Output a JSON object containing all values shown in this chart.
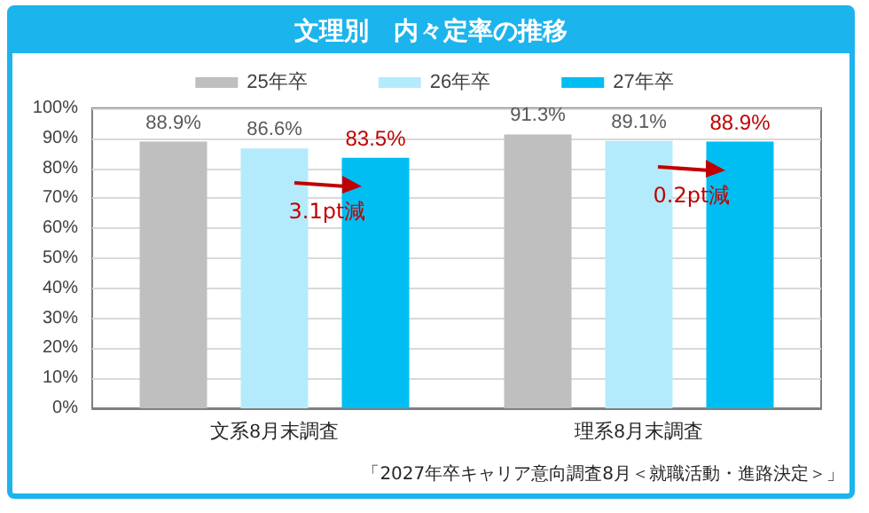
{
  "chart_data": {
    "type": "bar",
    "title": "文理別　内々定率の推移",
    "categories": [
      "文系8月末調査",
      "理系8月末調査"
    ],
    "series": [
      {
        "name": "25年卒",
        "color": "#bfbfbf",
        "values": [
          88.9,
          91.3
        ]
      },
      {
        "name": "26年卒",
        "color": "#b4ebfc",
        "values": [
          86.6,
          89.1
        ]
      },
      {
        "name": "27年卒",
        "color": "#00bef2",
        "values": [
          83.5,
          88.9
        ]
      }
    ],
    "ylim": [
      0,
      100
    ],
    "yticks": [
      {
        "value": 0,
        "label": "0%"
      },
      {
        "value": 10,
        "label": "10%"
      },
      {
        "value": 20,
        "label": "20%"
      },
      {
        "value": 30,
        "label": "30%"
      },
      {
        "value": 40,
        "label": "40%"
      },
      {
        "value": 50,
        "label": "50%"
      },
      {
        "value": 60,
        "label": "60%"
      },
      {
        "value": 70,
        "label": "70%"
      },
      {
        "value": 80,
        "label": "80%"
      },
      {
        "value": 90,
        "label": "90%"
      },
      {
        "value": 100,
        "label": "100%"
      }
    ],
    "value_labels": [
      "88.9%",
      "91.3%",
      "86.6%",
      "89.1%",
      "83.5%",
      "88.9%"
    ],
    "grid": "y",
    "legend": "top",
    "annotations": [
      "3.1pt減",
      "0.2pt減",
      "「2027年卒キャリア意向調査8月＜就職活動・進路決定＞」"
    ]
  }
}
